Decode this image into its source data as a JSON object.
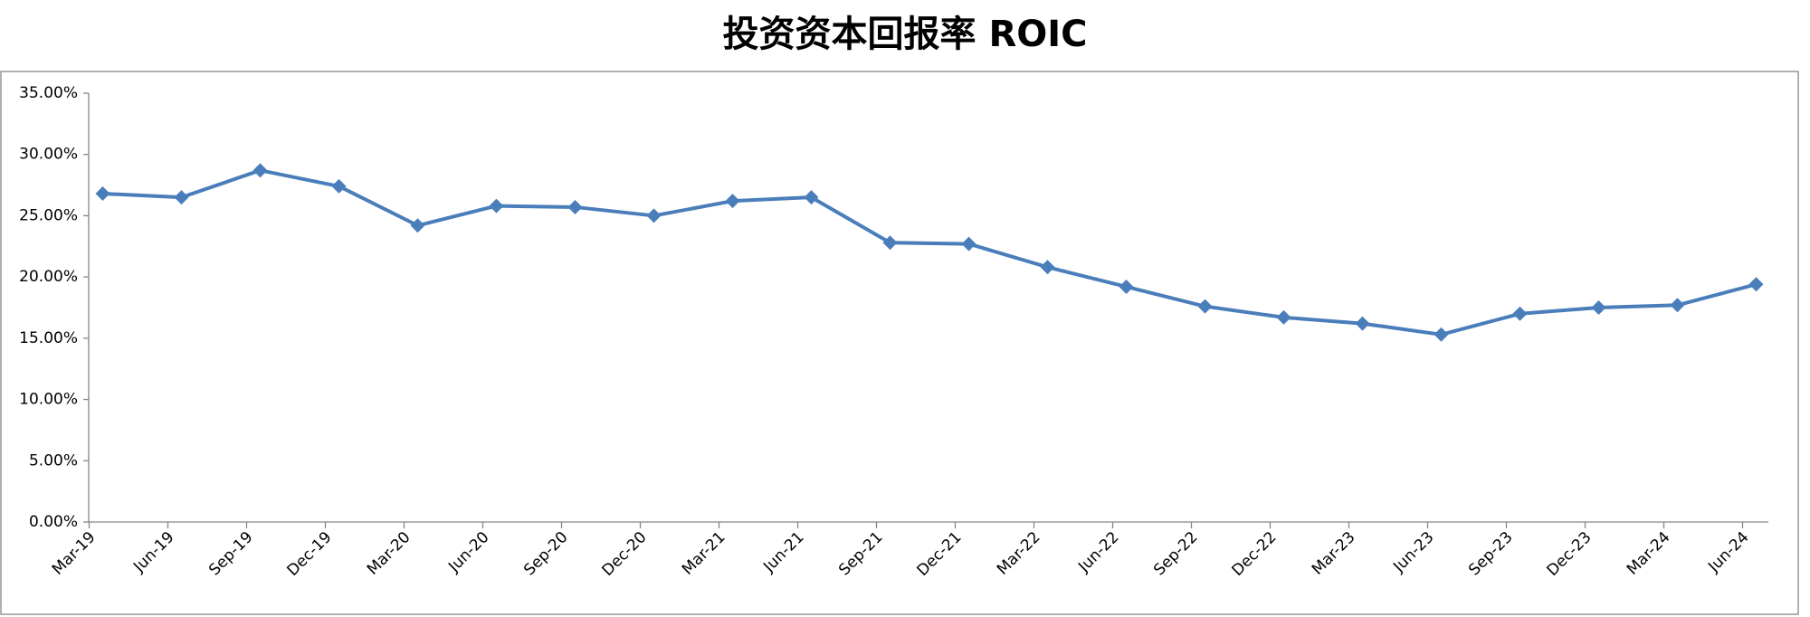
{
  "chart_data": {
    "type": "line",
    "title": "投资资本回报率 ROIC",
    "categories": [
      "Mar-19",
      "Jun-19",
      "Sep-19",
      "Dec-19",
      "Mar-20",
      "Jun-20",
      "Sep-20",
      "Dec-20",
      "Mar-21",
      "Jun-21",
      "Sep-21",
      "Dec-21",
      "Mar-22",
      "Jun-22",
      "Sep-22",
      "Dec-22",
      "Mar-23",
      "Jun-23",
      "Sep-23",
      "Dec-23",
      "Mar-24",
      "Jun-24"
    ],
    "series": [
      {
        "color": "#4a7ebb",
        "values": [
          26.8,
          26.5,
          28.7,
          27.4,
          24.2,
          25.8,
          25.7,
          25.0,
          26.2,
          26.5,
          22.8,
          22.7,
          20.8,
          19.2,
          17.6,
          16.7,
          16.2,
          15.3,
          17.0,
          17.5,
          17.7,
          19.4
        ]
      }
    ],
    "ylim": [
      0,
      35
    ],
    "yticks": [
      {
        "value": 0,
        "label": "0.00%"
      },
      {
        "value": 5,
        "label": "5.00%"
      },
      {
        "value": 10,
        "label": "10.00%"
      },
      {
        "value": 15,
        "label": "15.00%"
      },
      {
        "value": 20,
        "label": "20.00%"
      },
      {
        "value": 25,
        "label": "25.00%"
      },
      {
        "value": 30,
        "label": "30.00%"
      },
      {
        "value": 35,
        "label": "35.00%"
      }
    ],
    "grid": false
  }
}
